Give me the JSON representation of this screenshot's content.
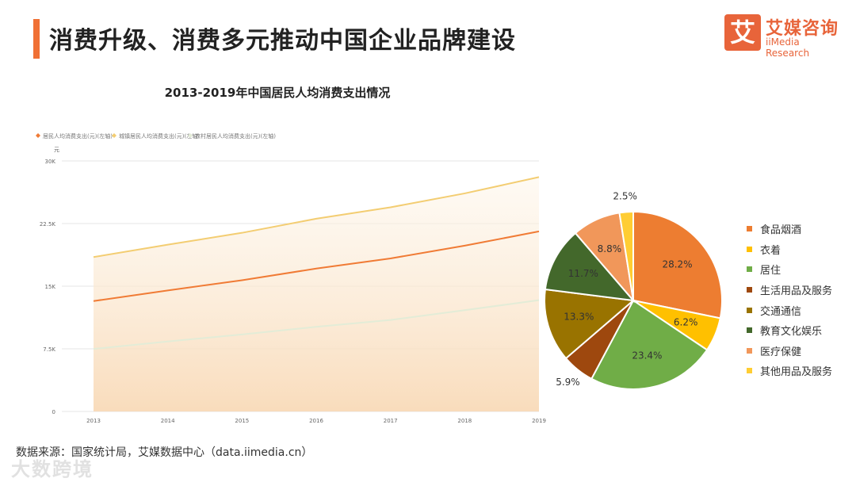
{
  "page": {
    "title": "消费升级、消费多元推动中国企业品牌建设",
    "logo": {
      "mark": "艾",
      "cn": "艾媒咨询",
      "en": "iiMedia Research"
    },
    "source": "数据来源：国家统计局，艾媒数据中心（data.iimedia.cn）",
    "watermark": "大数跨境"
  },
  "chart_data": [
    {
      "type": "area",
      "title": "2013-2019年中国居民人均消费支出情况",
      "ylabel": "元",
      "x": [
        "2013",
        "2014",
        "2015",
        "2016",
        "2017",
        "2018",
        "2019"
      ],
      "ylim": [
        0,
        30000
      ],
      "yticks": [
        "0",
        "7.5K",
        "15K",
        "22.5K",
        "30K"
      ],
      "legend_position": "top-left",
      "grid": true,
      "series": [
        {
          "name": "居民人均消费支出(元)(左轴)",
          "color": "#f07b35",
          "values": [
            13220,
            14491,
            15712,
            17111,
            18322,
            19853,
            21559
          ]
        },
        {
          "name": "城镇居民人均消费支出(元)(左轴)",
          "color": "#f3cd72",
          "values": [
            18488,
            19968,
            21392,
            23079,
            24445,
            26112,
            28063
          ]
        },
        {
          "name": "农村居民人均消费支出(元)(左轴)",
          "color": "#e3ecd7",
          "values": [
            7485,
            8383,
            9223,
            10130,
            10955,
            12124,
            13328
          ]
        }
      ]
    },
    {
      "type": "pie",
      "legend_position": "right",
      "labels": [
        "食品烟酒",
        "衣着",
        "居住",
        "生活用品及服务",
        "交通通信",
        "教育文化娱乐",
        "医疗保健",
        "其他用品及服务"
      ],
      "values": [
        28.2,
        6.2,
        23.4,
        5.9,
        13.3,
        11.7,
        8.8,
        2.5
      ],
      "value_labels": [
        "28.2%",
        "6.2%",
        "23.4%",
        "5.9%",
        "13.3%",
        "11.7%",
        "8.8%",
        "2.5%"
      ],
      "colors": [
        "#ed7d31",
        "#ffc000",
        "#70ad47",
        "#9e480e",
        "#997300",
        "#43682b",
        "#f1975a",
        "#ffcd33"
      ]
    }
  ]
}
